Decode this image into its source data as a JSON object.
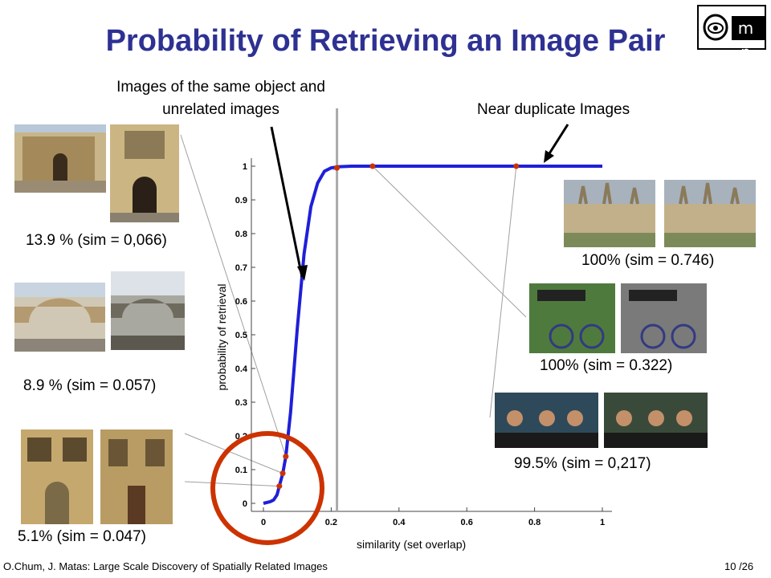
{
  "title": "Probability of Retrieving an Image Pair",
  "logo_text": "m p",
  "annotations": {
    "same_object": "Images of the same object and unrelated images",
    "near_duplicate": "Near duplicate Images"
  },
  "pairs": [
    {
      "label": "13.9 % (sim = 0,066)",
      "description": "two photos of an ornate stone college courtyard with arched doorway"
    },
    {
      "label": "8.9 % (sim = 0.057)",
      "description": "two photos of a covered stone bridge over a street"
    },
    {
      "label": "5.1% (sim = 0.047)",
      "description": "two photos of ornate stone building facades with doors"
    },
    {
      "label": "100% (sim = 0.746)",
      "description": "two aerial views of a gothic college with spires"
    },
    {
      "label": "100% (sim = 0.322)",
      "description": "color and grayscale photo of a bicycle by a Magdalen Street sign"
    },
    {
      "label": "99.5% (sim = 0,217)",
      "description": "two photos of musicians in cowboy hats"
    }
  ],
  "chart_data": {
    "type": "line",
    "xlabel": "similarity (set overlap)",
    "ylabel": "probability of retrieval",
    "xlim": [
      0,
      1
    ],
    "ylim": [
      0,
      1
    ],
    "x_ticks": [
      "0",
      "0.2",
      "0.4",
      "0.6",
      "0.8",
      "1"
    ],
    "y_ticks": [
      "0",
      "0.1",
      "0.2",
      "0.3",
      "0.4",
      "0.5",
      "0.6",
      "0.7",
      "0.8",
      "0.9",
      "1"
    ],
    "series": [
      {
        "color": "#1f1fd9",
        "x": [
          0,
          0.02,
          0.03,
          0.04,
          0.047,
          0.057,
          0.066,
          0.08,
          0.1,
          0.12,
          0.14,
          0.16,
          0.18,
          0.2,
          0.22,
          0.26,
          0.3,
          0.35,
          0.5,
          0.75,
          1.0
        ],
        "y": [
          0.0,
          0.005,
          0.01,
          0.025,
          0.051,
          0.089,
          0.139,
          0.27,
          0.52,
          0.74,
          0.88,
          0.95,
          0.985,
          0.995,
          0.998,
          1.0,
          1.0,
          1.0,
          1.0,
          1.0,
          1.0
        ]
      }
    ],
    "highlighted_points": [
      {
        "x": 0.047,
        "y": 0.051
      },
      {
        "x": 0.057,
        "y": 0.089
      },
      {
        "x": 0.066,
        "y": 0.139
      },
      {
        "x": 0.217,
        "y": 0.995
      },
      {
        "x": 0.322,
        "y": 1.0
      },
      {
        "x": 0.746,
        "y": 1.0
      }
    ],
    "point_color": "#cc3300",
    "vertical_line_x": 0.217,
    "circle_color": "#cc3300"
  },
  "footer": {
    "citation": "O.Chum, J. Matas:  Large Scale Discovery of Spatially Related Images",
    "page": "10 /26"
  }
}
